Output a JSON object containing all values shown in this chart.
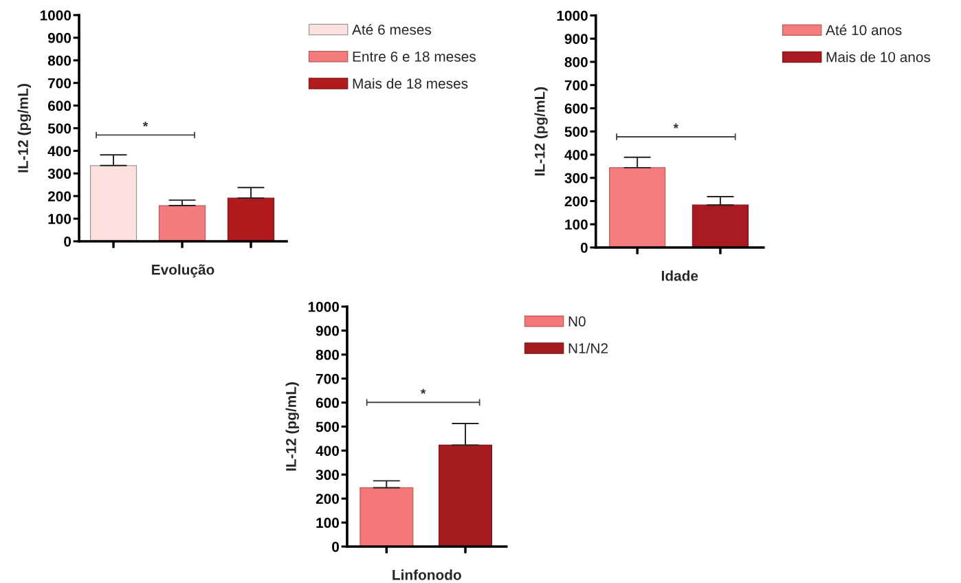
{
  "chart_data": [
    {
      "type": "bar",
      "stacked": true,
      "categories": [
        null,
        null,
        null
      ],
      "xlabel": "Evolução",
      "ylabel": "IL-12 (pg/mL)",
      "ylim": [
        0,
        1000
      ],
      "yticks": [
        0,
        100,
        200,
        300,
        400,
        500,
        600,
        700,
        800,
        900,
        1000
      ],
      "tick_labels": "y",
      "legend": "top right",
      "series": [
        {
          "name": "Até 6 meses",
          "color": "#fde0e0",
          "values": [
            335,
            null,
            null
          ],
          "errors": [
            [
              335,
              382
            ],
            null,
            null
          ]
        },
        {
          "name": "Entre 6 e 18 meses",
          "color": "#f27b7b",
          "values": [
            null,
            158,
            null
          ],
          "errors": [
            null,
            [
              158,
              182
            ],
            null
          ]
        },
        {
          "name": "Mais de 18 meses",
          "color": "#b11b1e",
          "values": [
            null,
            null,
            191
          ],
          "errors": [
            null,
            null,
            [
              191,
              238
            ]
          ]
        }
      ],
      "annotations": [
        "*"
      ]
    },
    {
      "type": "bar",
      "stacked": true,
      "categories": [
        null,
        null
      ],
      "xlabel": "Idade",
      "ylabel": "IL-12 (pg/mL)",
      "ylim": [
        0,
        1000
      ],
      "yticks": [
        0,
        100,
        200,
        300,
        400,
        500,
        600,
        700,
        800,
        900,
        1000
      ],
      "tick_labels": "y",
      "legend": "top right",
      "series": [
        {
          "name": "Até 10 anos",
          "color": "#f47c7c",
          "values": [
            344,
            null
          ],
          "errors": [
            [
              344,
              389
            ],
            null
          ]
        },
        {
          "name": "Mais de 10 anos",
          "color": "#a91b20",
          "values": [
            null,
            183
          ],
          "errors": [
            null,
            [
              183,
              219
            ]
          ]
        }
      ],
      "annotations": [
        "*"
      ]
    },
    {
      "type": "bar",
      "stacked": true,
      "categories": [
        null,
        null
      ],
      "xlabel": "Linfonodo",
      "ylabel": "IL-12 (pg/mL)",
      "ylim": [
        0,
        1000
      ],
      "yticks": [
        0,
        100,
        200,
        300,
        400,
        500,
        600,
        700,
        800,
        900,
        1000
      ],
      "tick_labels": "y",
      "legend": "top right",
      "series": [
        {
          "name": "N0",
          "color": "#f47878",
          "values": [
            245,
            null
          ],
          "errors": [
            [
              245,
              274
            ],
            null
          ]
        },
        {
          "name": "N1/N2",
          "color": "#a51c1f",
          "values": [
            null,
            423
          ],
          "errors": [
            null,
            [
              423,
              513
            ]
          ]
        }
      ],
      "annotations": [
        "*"
      ]
    }
  ]
}
